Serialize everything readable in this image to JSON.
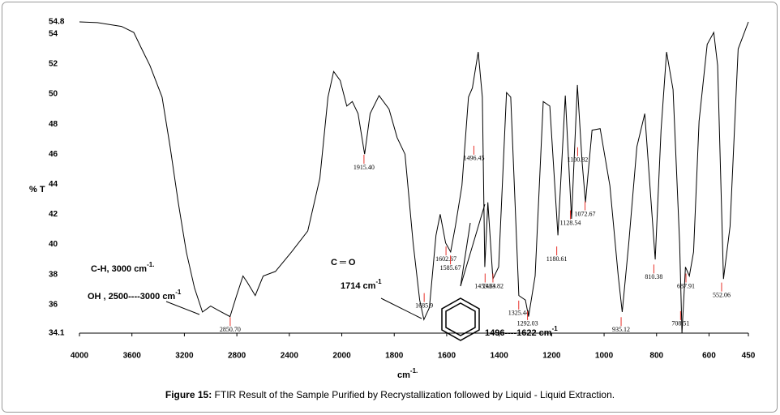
{
  "chart_data": {
    "type": "line",
    "ylabel": "% T",
    "xlabel": {
      "text": "cm",
      "sup": "-1."
    },
    "caption": {
      "bold": "Figure 15:",
      "text": " FTIR Result of the Sample Purified by Recrystallization followed by Liquid - Liquid Extraction."
    },
    "xlim": [
      4000,
      450
    ],
    "x_scale_change": 2000,
    "xticks": [
      4000,
      3600,
      3200,
      2800,
      2400,
      2000,
      1800,
      1600,
      1400,
      1200,
      1000,
      800,
      600,
      450
    ],
    "ylim": [
      34.1,
      54.8
    ],
    "yticks": [
      54.8,
      54,
      52,
      50,
      48,
      46,
      44,
      42,
      40,
      38,
      36,
      34.1
    ],
    "color": "#000000",
    "peak_color": "#e8312a",
    "x": [
      4000,
      3864,
      3679,
      3586,
      3525,
      3463,
      3370,
      3309,
      3247,
      3185,
      3123,
      3062,
      3000,
      2938,
      2852,
      2802,
      2753,
      2722,
      2660,
      2599,
      2506,
      2383,
      2259,
      2167,
      2105,
      2062,
      2012,
      1981,
      1960,
      1938,
      1913,
      1892,
      1858,
      1820,
      1789,
      1759,
      1728,
      1703,
      1687,
      1666,
      1641,
      1625,
      1604,
      1585,
      1567,
      1542,
      1517,
      1502,
      1480,
      1464,
      1455,
      1443,
      1424,
      1402,
      1372,
      1356,
      1325,
      1300,
      1288,
      1263,
      1232,
      1207,
      1176,
      1148,
      1124,
      1102,
      1084,
      1071,
      1046,
      1015,
      978,
      946,
      931,
      906,
      875,
      845,
      805,
      783,
      762,
      737,
      712,
      703,
      690,
      675,
      659,
      638,
      607,
      582,
      567,
      545,
      520,
      489,
      450
    ],
    "values": [
      54.8,
      54.75,
      54.5,
      54.1,
      53.0,
      51.9,
      49.8,
      46.5,
      42.8,
      39.5,
      37.1,
      35.5,
      35.9,
      35.6,
      35.2,
      36.6,
      37.9,
      37.5,
      36.6,
      37.9,
      38.2,
      39.5,
      40.9,
      44.4,
      49.8,
      51.5,
      50.9,
      49.2,
      49.5,
      48.7,
      46.0,
      48.7,
      49.9,
      49.0,
      47.1,
      46.0,
      40.1,
      36.3,
      35.0,
      35.8,
      40.6,
      42.0,
      40.1,
      39.5,
      41.2,
      43.9,
      49.8,
      50.4,
      52.8,
      49.8,
      38.5,
      42.8,
      37.7,
      38.5,
      50.1,
      49.8,
      36.6,
      36.3,
      35.2,
      37.9,
      49.5,
      49.2,
      40.6,
      49.9,
      41.7,
      50.6,
      45.5,
      42.8,
      47.6,
      47.7,
      43.9,
      37.9,
      35.5,
      40.1,
      46.5,
      48.7,
      39.0,
      47.6,
      52.8,
      50.3,
      40.1,
      34.1,
      38.5,
      37.9,
      39.5,
      48.2,
      53.3,
      54.1,
      51.9,
      37.7,
      41.2,
      53.0,
      54.8
    ],
    "peaks": [
      {
        "value": 2850.7,
        "label": "2850.70",
        "y": 34.3
      },
      {
        "value": 1915.4,
        "label": "1915.40",
        "y": 45.1
      },
      {
        "value": 1685.9,
        "label": "1685.9",
        "y": 35.9
      },
      {
        "value": 1602.67,
        "label": "1602.67",
        "y": 39.0
      },
      {
        "value": 1585.67,
        "label": "1585.67",
        "y": 38.4
      },
      {
        "value": 1496.45,
        "label": "1496.45",
        "y": 45.7
      },
      {
        "value": 1453.64,
        "label": "1453.64",
        "y": 37.2
      },
      {
        "value": 1423.82,
        "label": "1423.82",
        "y": 37.2
      },
      {
        "value": 1325.44,
        "label": "1325.44",
        "y": 35.4
      },
      {
        "value": 1292.03,
        "label": "1292.03",
        "y": 34.7
      },
      {
        "value": 1180.61,
        "label": "1180.61",
        "y": 39.0
      },
      {
        "value": 1128.54,
        "label": "1128.54",
        "y": 41.4
      },
      {
        "value": 1100.82,
        "label": "1100.82",
        "y": 45.6
      },
      {
        "value": 1072.67,
        "label": "1072.67",
        "y": 42.0
      },
      {
        "value": 935.12,
        "label": "935.12",
        "y": 34.3
      },
      {
        "value": 810.38,
        "label": "810.38",
        "y": 37.8
      },
      {
        "value": 708.51,
        "label": "708.51",
        "y": 34.7
      },
      {
        "value": 687.91,
        "label": "687.91",
        "y": 37.2
      },
      {
        "value": 552.06,
        "label": "552.06",
        "y": 36.6
      }
    ],
    "annotations": [
      {
        "text": "C-H, 3000  cm",
        "sup": "-1."
      },
      {
        "text": "OH , 2500----3000 cm",
        "sup": "-1"
      },
      {
        "text": "C ═ O"
      },
      {
        "text": "1714  cm",
        "sup": "-1"
      },
      {
        "text": "1496----1622 cm",
        "sup": "-1"
      }
    ]
  }
}
